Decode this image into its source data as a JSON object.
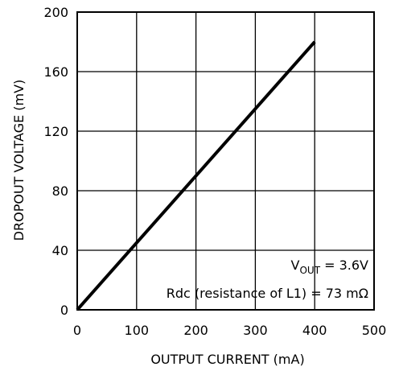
{
  "chart_data": {
    "type": "line",
    "title": "",
    "xlabel": "OUTPUT CURRENT (mA)",
    "ylabel": "DROPOUT VOLTAGE (mV)",
    "xlim": [
      0,
      500
    ],
    "ylim": [
      0,
      200
    ],
    "x_ticks": [
      0,
      100,
      200,
      300,
      400,
      500
    ],
    "y_ticks": [
      0,
      40,
      80,
      120,
      160,
      200
    ],
    "grid": true,
    "series": [
      {
        "x": [
          0,
          400
        ],
        "y": [
          0,
          180
        ]
      }
    ],
    "annotations": [
      {
        "main": "V",
        "sub": "OUT",
        "rest": " = 3.6V"
      },
      {
        "text": "Rdc (resistance of L1) = 73 mΩ"
      }
    ],
    "colors": {
      "line": "#000000",
      "grid": "#000000",
      "background": "#ffffff"
    }
  }
}
